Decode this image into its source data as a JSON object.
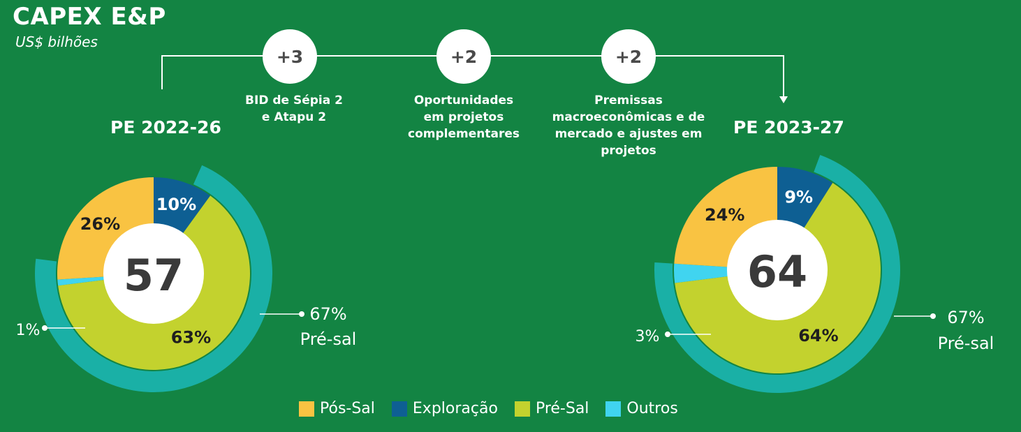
{
  "header": {
    "title": "CAPEX E&P",
    "subtitle": "US$ bilhões"
  },
  "steps": [
    {
      "value": "+3",
      "label_lines": [
        "BID de Sépia 2",
        "e Atapu 2"
      ]
    },
    {
      "value": "+2",
      "label_lines": [
        "Oportunidades",
        "em projetos",
        "complementares"
      ]
    },
    {
      "value": "+2",
      "label_lines": [
        "Premissas",
        "macroeconômicas e de",
        "mercado e ajustes em",
        "projetos"
      ]
    }
  ],
  "legend": [
    {
      "label": "Pós-Sal",
      "color": "#f9c342"
    },
    {
      "label": "Exploração",
      "color": "#0e5f93"
    },
    {
      "label": "Pré-Sal",
      "color": "#c3d22e"
    },
    {
      "label": "Outros",
      "color": "#40d4f0"
    }
  ],
  "chart_data": [
    {
      "type": "pie",
      "title": "PE 2022-26",
      "total": "57",
      "slices": [
        {
          "name": "Exploração",
          "value": 10,
          "label": "10%",
          "color": "#0e5f93"
        },
        {
          "name": "Pré-Sal",
          "value": 63,
          "label": "63%",
          "color": "#c3d22e"
        },
        {
          "name": "Outros",
          "value": 1,
          "label": "1%",
          "color": "#40d4f0"
        },
        {
          "name": "Pós-Sal",
          "value": 26,
          "label": "26%",
          "color": "#f9c342"
        }
      ],
      "outer_ring": {
        "value": 67,
        "color": "#1ab0a6"
      },
      "ring_label": {
        "percent": "67%",
        "name": "Pré-sal"
      }
    },
    {
      "type": "pie",
      "title": "PE 2023-27",
      "total": "64",
      "slices": [
        {
          "name": "Exploração",
          "value": 9,
          "label": "9%",
          "color": "#0e5f93"
        },
        {
          "name": "Pré-Sal",
          "value": 64,
          "label": "64%",
          "color": "#c3d22e"
        },
        {
          "name": "Outros",
          "value": 3,
          "label": "3%",
          "color": "#40d4f0"
        },
        {
          "name": "Pós-Sal",
          "value": 24,
          "label": "24%",
          "color": "#f9c342"
        }
      ],
      "outer_ring": {
        "value": 67,
        "color": "#1ab0a6"
      },
      "ring_label": {
        "percent": "67%",
        "name": "Pré-sal"
      }
    }
  ]
}
